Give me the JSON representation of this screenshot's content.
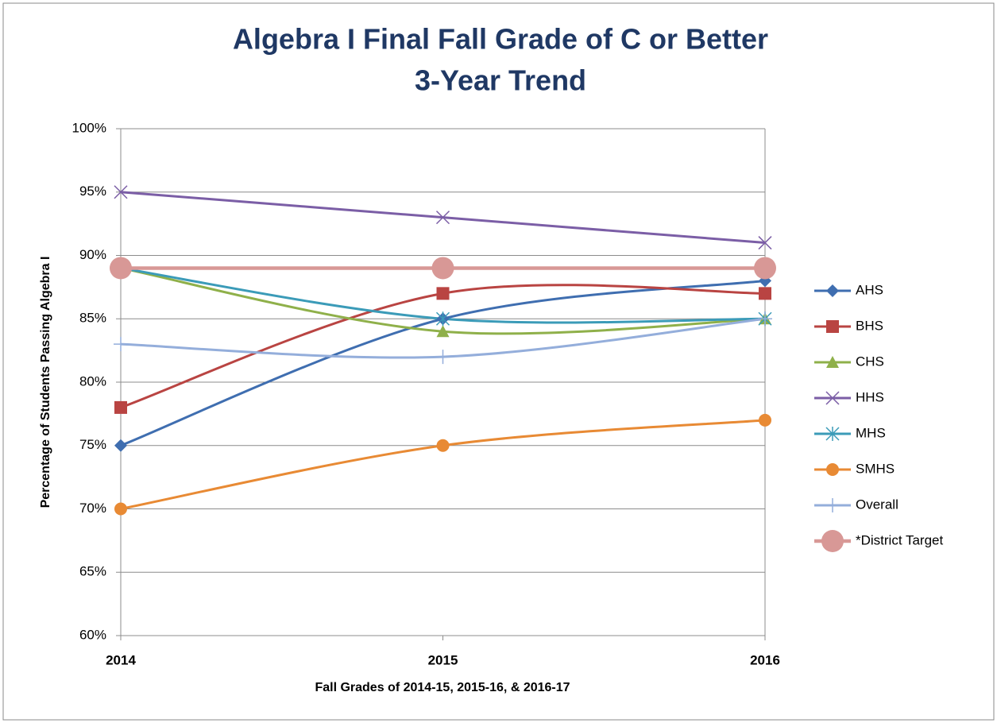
{
  "chart_data": {
    "type": "line",
    "title": [
      "Algebra I Final Fall Grade of C or Better",
      "3-Year Trend"
    ],
    "x_label": "Fall Grades of 2014-15, 2015-16, & 2016-17",
    "y_label": "Percentage of Students Passing Algebra I",
    "categories": [
      "2014",
      "2015",
      "2016"
    ],
    "smooth": true,
    "grid": true,
    "legend": "right",
    "ylim": [
      60,
      100
    ],
    "yticks": [
      {
        "value": 60,
        "label": "60%"
      },
      {
        "value": 65,
        "label": "65%"
      },
      {
        "value": 70,
        "label": "70%"
      },
      {
        "value": 75,
        "label": "75%"
      },
      {
        "value": 80,
        "label": "80%"
      },
      {
        "value": 85,
        "label": "85%"
      },
      {
        "value": 90,
        "label": "90%"
      },
      {
        "value": 95,
        "label": "95%"
      },
      {
        "value": 100,
        "label": "100%"
      }
    ],
    "series": [
      {
        "name": "AHS",
        "color": "#3f6eb0",
        "marker": "diamond",
        "values": [
          75,
          85,
          88
        ]
      },
      {
        "name": "BHS",
        "color": "#b94442",
        "marker": "square",
        "values": [
          78,
          87,
          87
        ]
      },
      {
        "name": "CHS",
        "color": "#8fb04a",
        "marker": "triangle",
        "values": [
          89,
          84,
          85
        ]
      },
      {
        "name": "HHS",
        "color": "#7b5ea6",
        "marker": "x",
        "values": [
          95,
          93,
          91
        ]
      },
      {
        "name": "MHS",
        "color": "#3b9bb8",
        "marker": "asterisk",
        "values": [
          89,
          85,
          85
        ]
      },
      {
        "name": "SMHS",
        "color": "#e88a34",
        "marker": "circle",
        "values": [
          70,
          75,
          77
        ]
      },
      {
        "name": "Overall",
        "color": "#94aedb",
        "marker": "plus",
        "values": [
          83,
          82,
          85
        ]
      },
      {
        "name": "*District Target",
        "color": "#d89896",
        "marker": "bigcircle",
        "values": [
          89,
          89,
          89
        ]
      }
    ]
  }
}
